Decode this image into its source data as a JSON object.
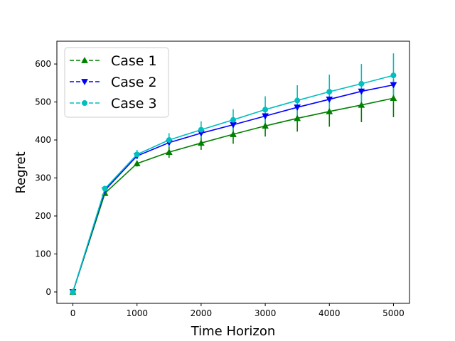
{
  "chart_data": {
    "type": "line",
    "title": "",
    "xlabel": "Time Horizon",
    "ylabel": "Regret",
    "xlim": [
      -250,
      5250
    ],
    "ylim": [
      -30,
      660
    ],
    "x_ticks": [
      0,
      1000,
      2000,
      3000,
      4000,
      5000
    ],
    "y_ticks": [
      0,
      100,
      200,
      300,
      400,
      500,
      600
    ],
    "x": [
      0,
      500,
      1000,
      1500,
      2000,
      2500,
      3000,
      3500,
      4000,
      4500,
      5000
    ],
    "grid": false,
    "legend_position": "top-left",
    "series": [
      {
        "name": "Case 1",
        "color": "#008000",
        "marker": "triangle-up",
        "values": [
          0,
          260,
          338,
          368,
          392,
          415,
          437,
          457,
          475,
          492,
          510
        ],
        "error": [
          0,
          5,
          8,
          15,
          18,
          25,
          28,
          35,
          40,
          45,
          50
        ]
      },
      {
        "name": "Case 2",
        "color": "#0000ff",
        "marker": "triangle-down",
        "values": [
          0,
          268,
          358,
          393,
          418,
          440,
          463,
          486,
          507,
          528,
          545
        ],
        "error": [
          0,
          0,
          0,
          0,
          0,
          0,
          0,
          0,
          0,
          0,
          0
        ]
      },
      {
        "name": "Case 3",
        "color": "#00bfbf",
        "marker": "circle",
        "values": [
          0,
          272,
          362,
          400,
          427,
          453,
          480,
          504,
          527,
          548,
          570
        ],
        "error": [
          0,
          5,
          12,
          18,
          22,
          28,
          35,
          40,
          45,
          52,
          58
        ]
      }
    ]
  }
}
